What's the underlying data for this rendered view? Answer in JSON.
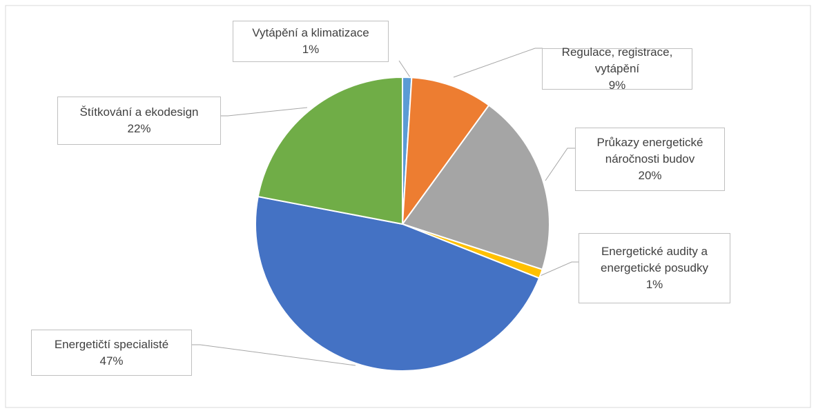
{
  "chart_data": {
    "type": "pie",
    "categories": [
      "Vytápění a klimatizace",
      "Regulace, registrace, vytápění",
      "Průkazy energetické náročnosti budov",
      "Energetické audity a energetické posudky",
      "Energetičtí specialisté",
      "Štítkování a ekodesign"
    ],
    "values": [
      1,
      9,
      20,
      1,
      47,
      22
    ],
    "value_labels": [
      "1%",
      "9%",
      "20%",
      "1%",
      "47%",
      "22%"
    ],
    "colors": [
      "#5b9bd5",
      "#ed7d31",
      "#a5a5a5",
      "#ffc000",
      "#4472c4",
      "#70ad47"
    ]
  }
}
